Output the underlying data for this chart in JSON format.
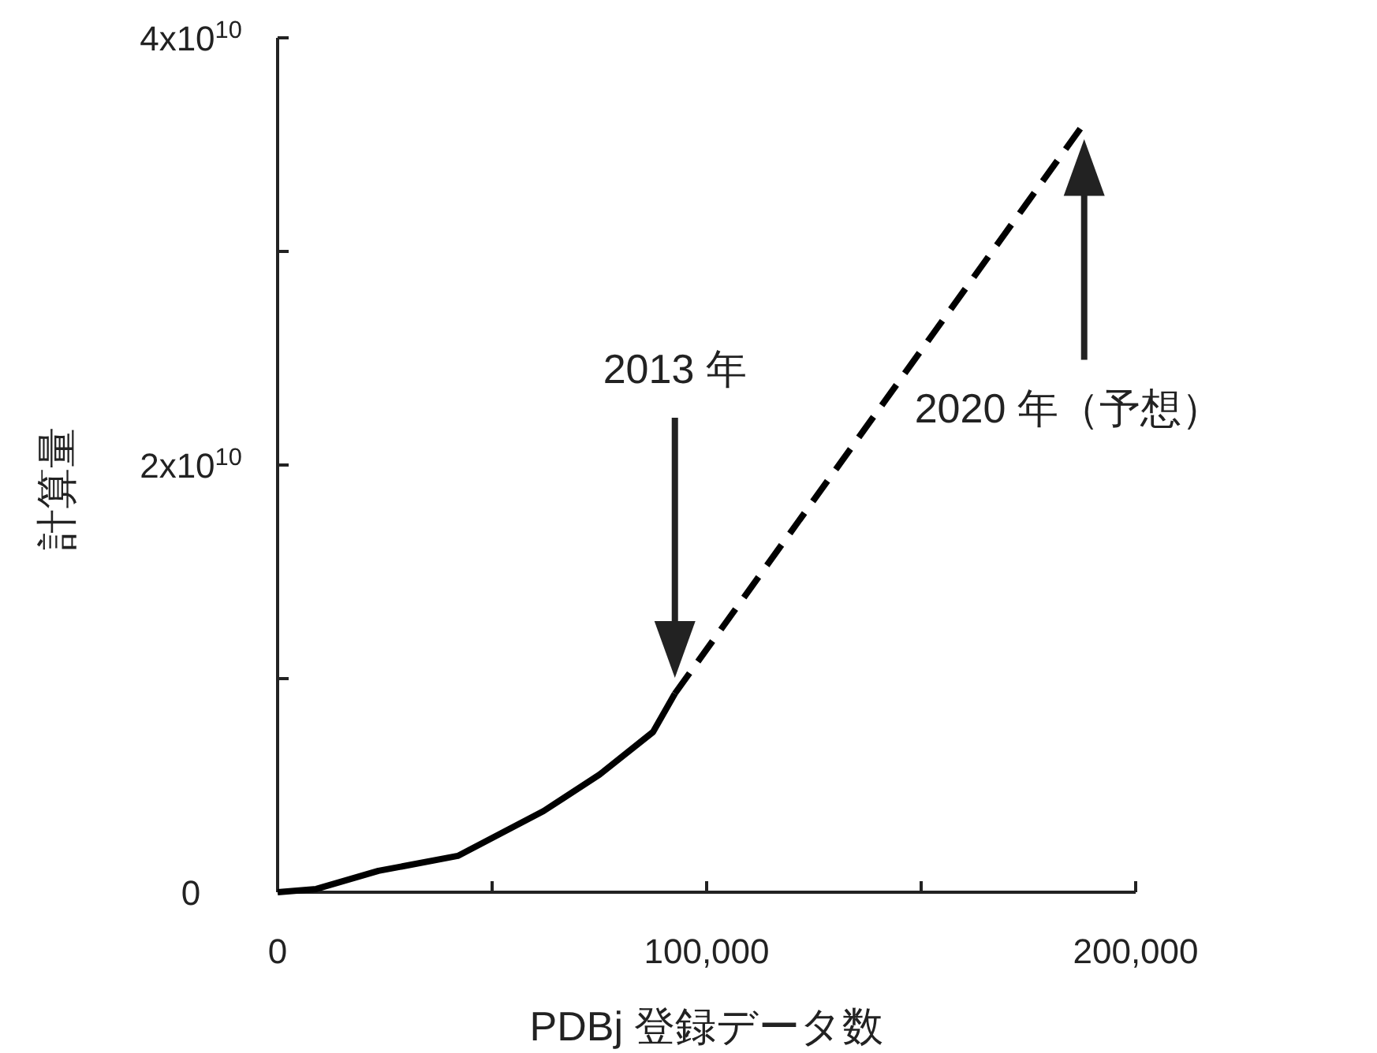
{
  "chart_data": {
    "type": "line",
    "xlabel": "PDBj 登録データ数",
    "ylabel": "計算量",
    "xlim": [
      0,
      200000
    ],
    "ylim": [
      0,
      40000000000
    ],
    "xticks": [
      0,
      {
        "value": 50000,
        "label": null
      },
      {
        "value": 100000,
        "label": "100,000"
      },
      {
        "value": 150000,
        "label": null
      },
      {
        "value": 200000,
        "label": "200,000"
      }
    ],
    "yticks": [
      0,
      {
        "value": 10000000000,
        "label": null
      },
      {
        "value": 20000000000,
        "label": "2x10$^{10}$"
      },
      {
        "value": 30000000000,
        "label": null
      },
      {
        "value": 40000000000,
        "label": "4x10$^{10}$"
      }
    ],
    "series": [
      {
        "color": "#000000",
        "line_style": "solid",
        "x": [
          0,
          9000,
          23500,
          42000,
          62000,
          75000,
          87500,
          92600
        ],
        "values": [
          0,
          150000000,
          1000000000,
          1700000000,
          3800000000,
          5500000000,
          7500000000,
          9300000000
        ]
      },
      {
        "color": "#000000",
        "line_style": "dashed",
        "x": [
          92600,
          188000
        ],
        "values": [
          9300000000,
          36000000000
        ]
      }
    ],
    "annotations": [
      "2013 年",
      "2020 年（予想）"
    ],
    "grid": false,
    "marker": "none"
  }
}
